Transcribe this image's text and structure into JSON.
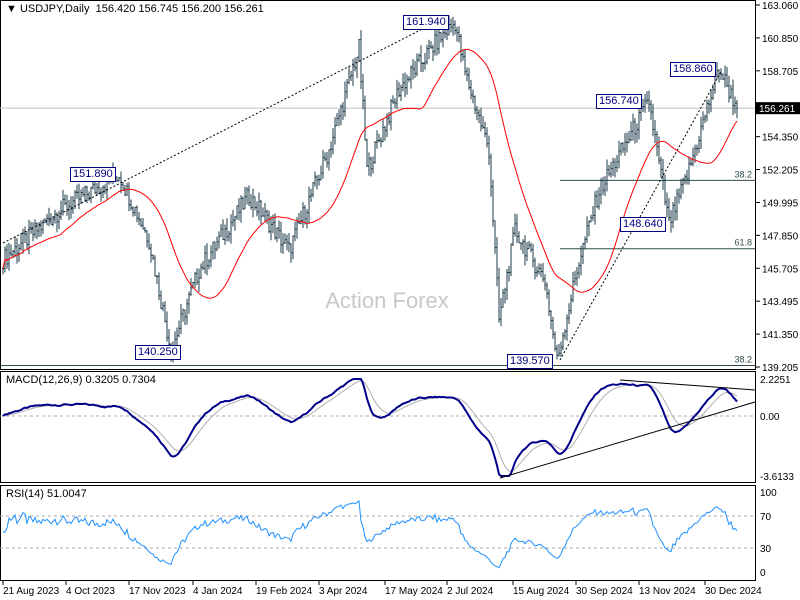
{
  "header": {
    "title": "USDJPY,Daily",
    "ohlc": "156.420 156.745 156.200 156.261"
  },
  "watermark": "Action Forex",
  "chart_data": {
    "type": "bar",
    "symbol": "USDJPY",
    "timeframe": "Daily",
    "price_axis": {
      "ylim": [
        139.205,
        163.06
      ],
      "ticks": [
        "163.060",
        "160.850",
        "158.705",
        "156.261",
        "154.350",
        "152.205",
        "149.995",
        "147.850",
        "145.705",
        "143.495",
        "141.350",
        "139.205"
      ]
    },
    "current_price": 156.261,
    "x_ticks": [
      "21 Aug 2023",
      "4 Oct 2023",
      "17 Nov 2023",
      "4 Jan 2024",
      "19 Feb 2024",
      "3 Apr 2024",
      "17 May 2024",
      "2 Jul 2024",
      "15 Aug 2024",
      "30 Sep 2024",
      "13 Nov 2024",
      "30 Dec 2024"
    ],
    "close_path": [
      [
        0,
        146.3
      ],
      [
        28,
        149.5
      ],
      [
        58,
        151.9
      ],
      [
        73,
        147.6
      ],
      [
        84,
        140.3
      ],
      [
        98,
        145.6
      ],
      [
        123,
        150.5
      ],
      [
        143,
        146.9
      ],
      [
        163,
        153.5
      ],
      [
        178,
        160.2
      ],
      [
        182,
        152.2
      ],
      [
        198,
        157.5
      ],
      [
        218,
        160.8
      ],
      [
        226,
        161.9
      ],
      [
        231,
        158.6
      ],
      [
        243,
        153.5
      ],
      [
        248,
        142.3
      ],
      [
        256,
        148.2
      ],
      [
        271,
        144.9
      ],
      [
        277,
        139.6
      ],
      [
        288,
        146.2
      ],
      [
        298,
        150.8
      ],
      [
        323,
        156.7
      ],
      [
        333,
        148.6
      ],
      [
        343,
        152.2
      ],
      [
        358,
        158.9
      ],
      [
        367,
        156.3
      ]
    ],
    "ma_period": 30,
    "annotations": [
      {
        "text": "161.940",
        "price": 161.94
      },
      {
        "text": "151.890",
        "price": 151.89
      },
      {
        "text": "140.250",
        "price": 140.25
      },
      {
        "text": "139.570",
        "price": 139.57
      },
      {
        "text": "156.740",
        "price": 156.74
      },
      {
        "text": "158.860",
        "price": 158.86
      },
      {
        "text": "148.640",
        "price": 148.64
      }
    ],
    "fib_levels": [
      {
        "label": "38.2",
        "price": 151.5
      },
      {
        "label": "61.8",
        "price": 147.0
      },
      {
        "label": "38.2",
        "price": 139.3
      }
    ],
    "macd": {
      "label": "MACD(12,26,9) 0.3205 0.7304",
      "ticks": [
        "2.2251",
        "0.00",
        "-3.6133"
      ],
      "ylim": [
        -3.6133,
        2.2251
      ]
    },
    "rsi": {
      "label": "RSI(14) 51.0047",
      "ticks": [
        "100",
        "70",
        "30",
        "0"
      ],
      "ylim": [
        0,
        100
      ]
    },
    "colors": {
      "bars": "#1c3a4a",
      "ma": "#ff0000",
      "macd": "#00008b",
      "signal": "#b0b0b0",
      "rsi": "#1e90ff",
      "label": "#000080"
    }
  }
}
